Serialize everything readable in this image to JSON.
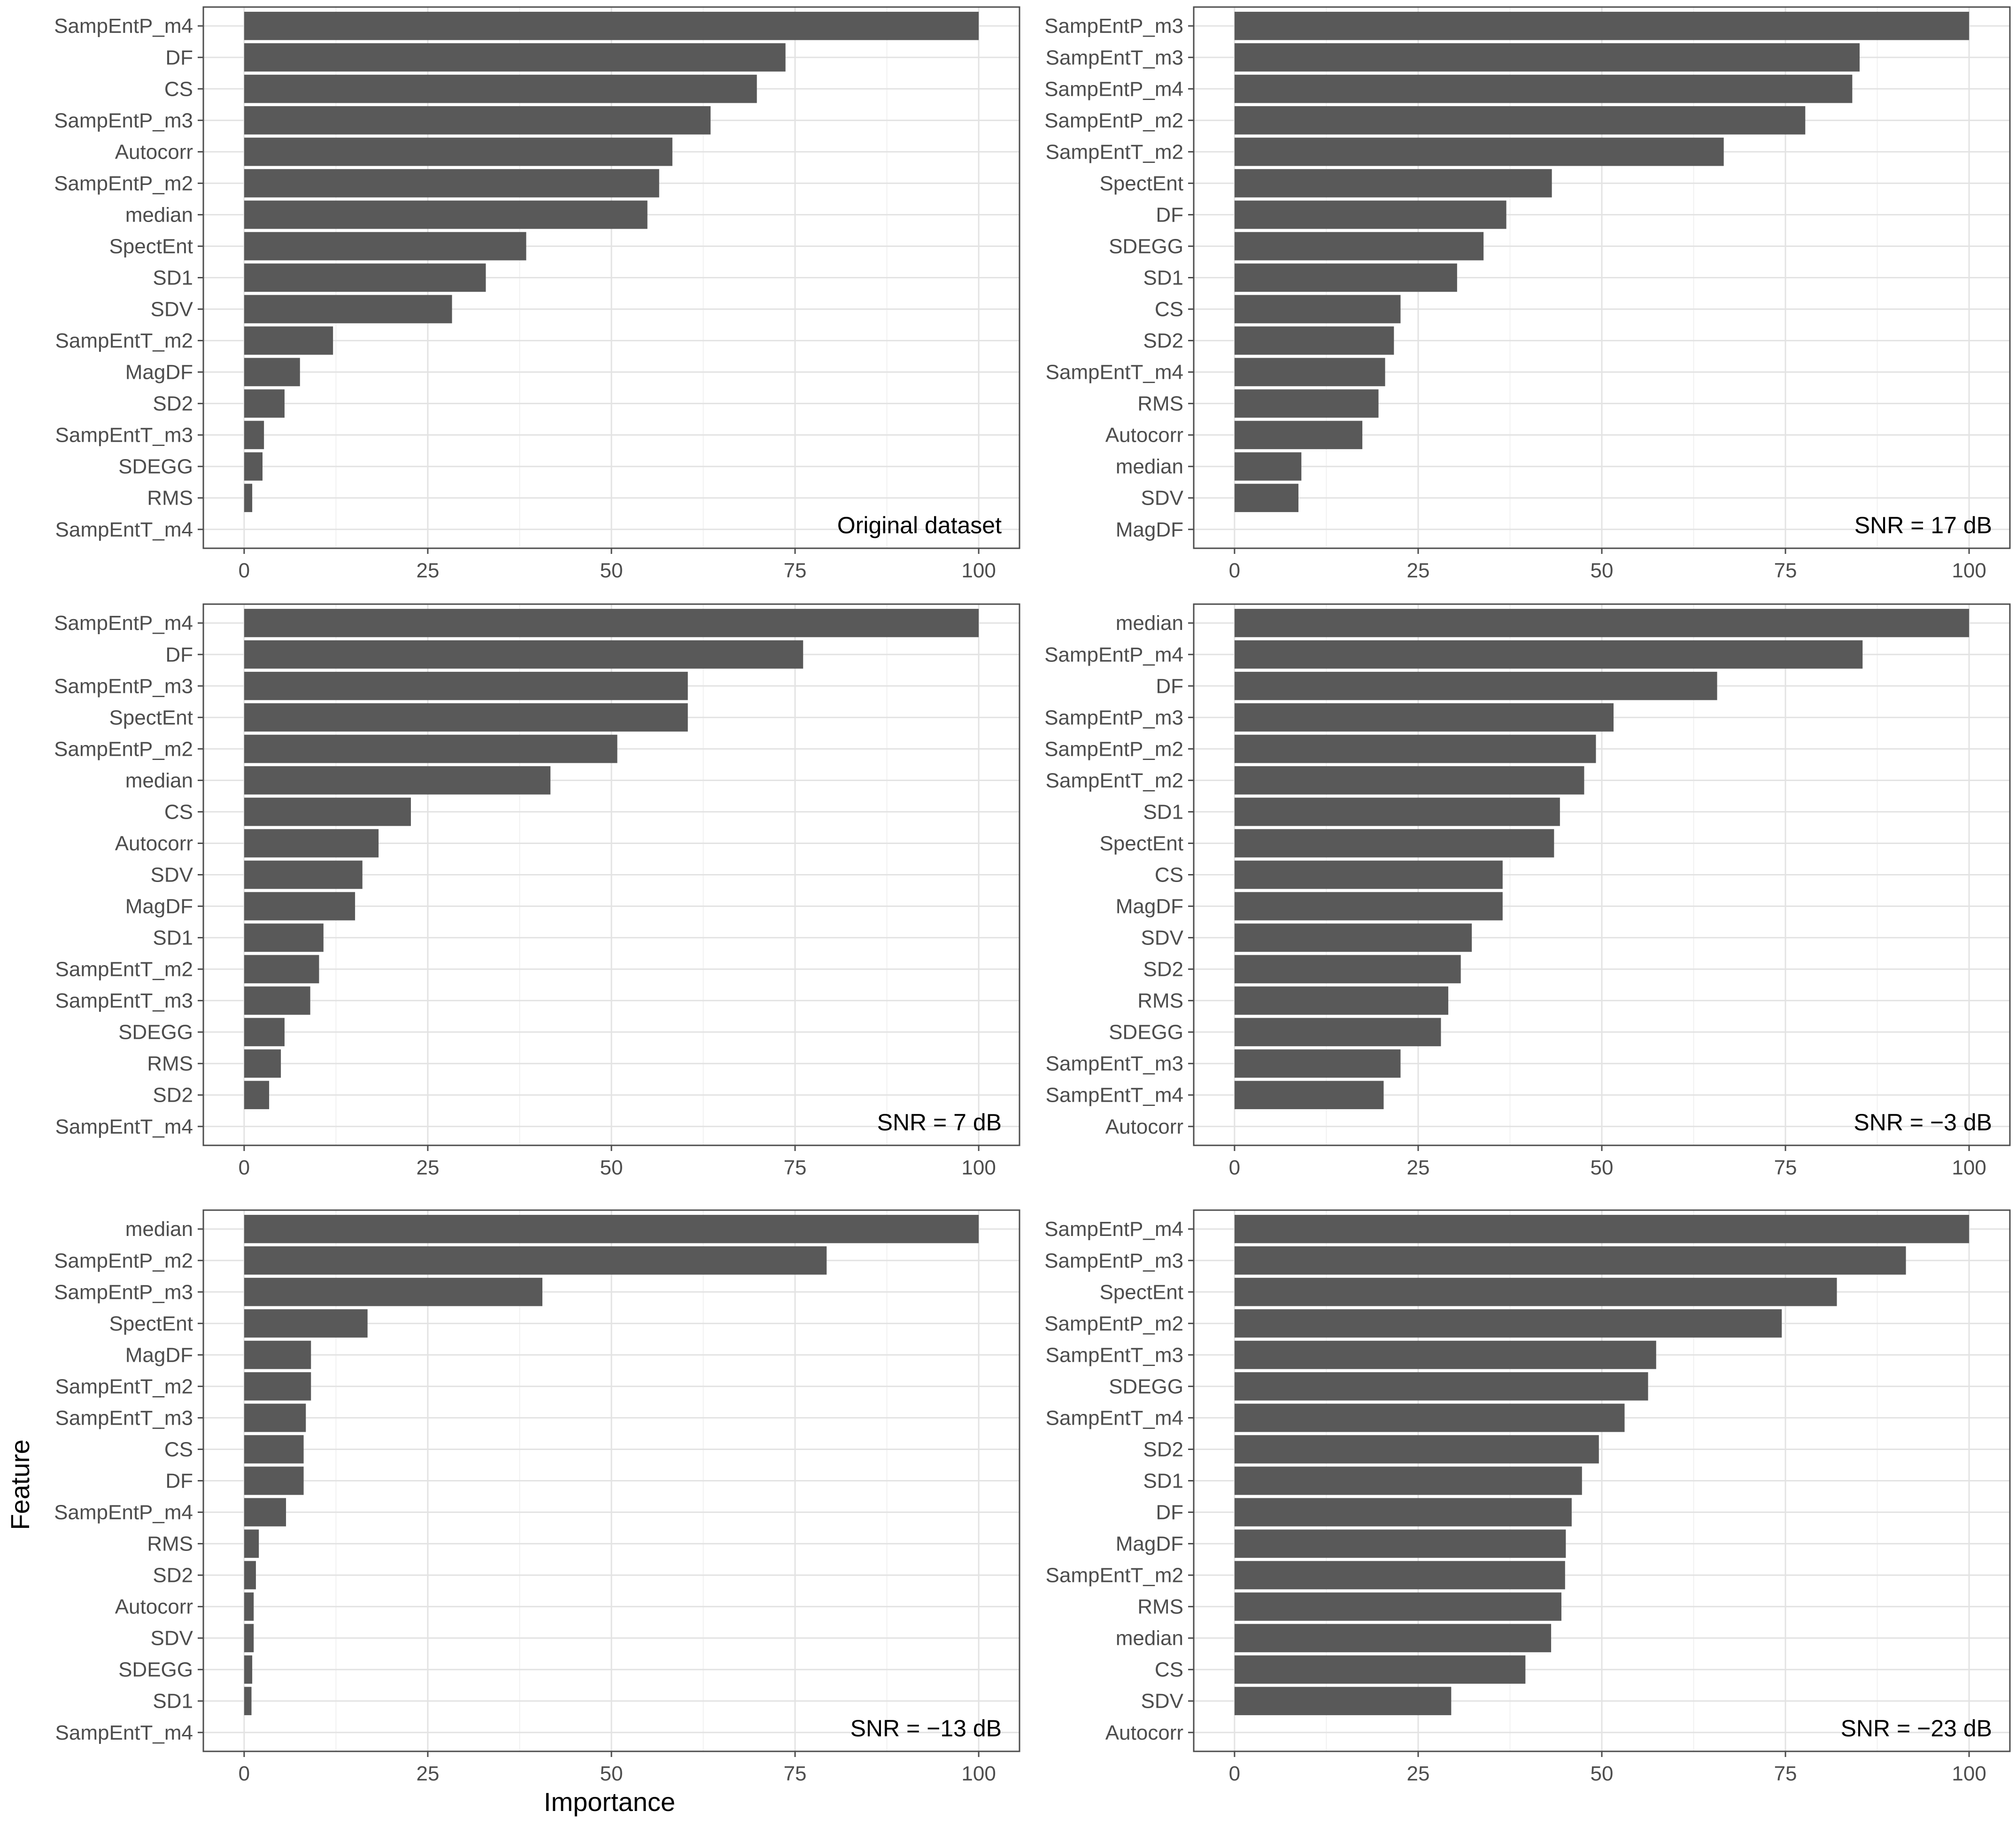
{
  "figure": {
    "xlabel": "Importance",
    "ylabel": "Feature"
  },
  "chart_data": [
    {
      "type": "bar",
      "orientation": "horizontal",
      "panel_label": "Original dataset",
      "xlim": [
        0,
        100
      ],
      "xticks": [
        "0",
        "25",
        "50",
        "75",
        "100"
      ],
      "categories": [
        "SampEntP_m4",
        "DF",
        "CS",
        "SampEntP_m3",
        "Autocorr",
        "SampEntP_m2",
        "median",
        "SpectEnt",
        "SD1",
        "SDV",
        "SampEntT_m2",
        "MagDF",
        "SD2",
        "SampEntT_m3",
        "SDEGG",
        "RMS",
        "SampEntT_m4"
      ],
      "values": [
        100,
        73.7,
        69.8,
        63.5,
        58.3,
        56.5,
        54.9,
        38.4,
        32.9,
        28.3,
        12.1,
        7.6,
        5.5,
        2.7,
        2.5,
        1.1,
        0
      ]
    },
    {
      "type": "bar",
      "orientation": "horizontal",
      "panel_label": "SNR = 17 dB",
      "xlim": [
        0,
        100
      ],
      "xticks": [
        "0",
        "25",
        "50",
        "75",
        "100"
      ],
      "categories": [
        "SampEntP_m3",
        "SampEntT_m3",
        "SampEntP_m4",
        "SampEntP_m2",
        "SampEntT_m2",
        "SpectEnt",
        "DF",
        "SDEGG",
        "SD1",
        "CS",
        "SD2",
        "SampEntT_m4",
        "RMS",
        "Autocorr",
        "median",
        "SDV",
        "MagDF"
      ],
      "values": [
        100,
        85.1,
        84.1,
        77.7,
        66.6,
        43.2,
        37,
        33.9,
        30.3,
        22.6,
        21.7,
        20.5,
        19.6,
        17.4,
        9.1,
        8.7,
        0
      ]
    },
    {
      "type": "bar",
      "orientation": "horizontal",
      "panel_label": "SNR = 7 dB",
      "xlim": [
        0,
        100
      ],
      "xticks": [
        "0",
        "25",
        "50",
        "75",
        "100"
      ],
      "categories": [
        "SampEntP_m4",
        "DF",
        "SampEntP_m3",
        "SpectEnt",
        "SampEntP_m2",
        "median",
        "CS",
        "Autocorr",
        "SDV",
        "MagDF",
        "SD1",
        "SampEntT_m2",
        "SampEntT_m3",
        "SDEGG",
        "RMS",
        "SD2",
        "SampEntT_m4"
      ],
      "values": [
        100,
        76.1,
        60.4,
        60.4,
        50.8,
        41.7,
        22.7,
        18.3,
        16.1,
        15.1,
        10.8,
        10.2,
        9,
        5.5,
        5,
        3.4,
        0
      ]
    },
    {
      "type": "bar",
      "orientation": "horizontal",
      "panel_label": "SNR = −3 dB",
      "xlim": [
        0,
        100
      ],
      "xticks": [
        "0",
        "25",
        "50",
        "75",
        "100"
      ],
      "categories": [
        "median",
        "SampEntP_m4",
        "DF",
        "SampEntP_m3",
        "SampEntP_m2",
        "SampEntT_m2",
        "SD1",
        "SpectEnt",
        "CS",
        "MagDF",
        "SDV",
        "SD2",
        "RMS",
        "SDEGG",
        "SampEntT_m3",
        "SampEntT_m4",
        "Autocorr"
      ],
      "values": [
        100,
        85.5,
        65.7,
        51.6,
        49.2,
        47.6,
        44.3,
        43.5,
        36.5,
        36.5,
        32.3,
        30.8,
        29.1,
        28.1,
        22.6,
        20.3,
        0
      ]
    },
    {
      "type": "bar",
      "orientation": "horizontal",
      "panel_label": "SNR = −13 dB",
      "xlim": [
        0,
        100
      ],
      "xticks": [
        "0",
        "25",
        "50",
        "75",
        "100"
      ],
      "categories": [
        "median",
        "SampEntP_m2",
        "SampEntP_m3",
        "SpectEnt",
        "MagDF",
        "SampEntT_m2",
        "SampEntT_m3",
        "CS",
        "DF",
        "SampEntP_m4",
        "RMS",
        "SD2",
        "Autocorr",
        "SDV",
        "SDEGG",
        "SD1",
        "SampEntT_m4"
      ],
      "values": [
        100,
        79.3,
        40.6,
        16.8,
        9.1,
        9.1,
        8.4,
        8.1,
        8.1,
        5.7,
        2,
        1.6,
        1.3,
        1.3,
        1.1,
        1,
        0
      ]
    },
    {
      "type": "bar",
      "orientation": "horizontal",
      "panel_label": "SNR = −23 dB",
      "xlim": [
        0,
        100
      ],
      "xticks": [
        "0",
        "25",
        "50",
        "75",
        "100"
      ],
      "categories": [
        "SampEntP_m4",
        "SampEntP_m3",
        "SpectEnt",
        "SampEntP_m2",
        "SampEntT_m3",
        "SDEGG",
        "SampEntT_m4",
        "SD2",
        "SD1",
        "DF",
        "MagDF",
        "SampEntT_m2",
        "RMS",
        "median",
        "CS",
        "SDV",
        "Autocorr"
      ],
      "values": [
        100,
        91.4,
        82,
        74.5,
        57.4,
        56.3,
        53.1,
        49.6,
        47.3,
        45.9,
        45.1,
        45,
        44.5,
        43.1,
        39.6,
        29.5,
        0
      ]
    }
  ]
}
